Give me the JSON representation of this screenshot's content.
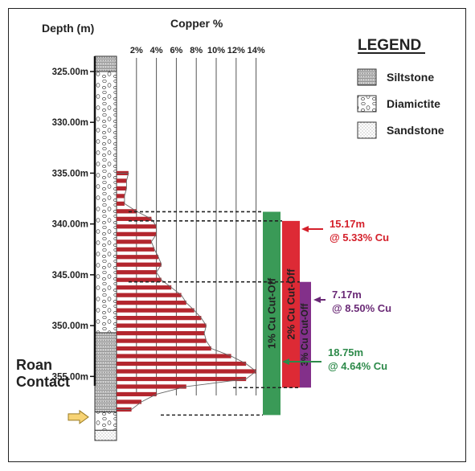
{
  "chart_data": {
    "type": "bar",
    "title": "Copper %",
    "ylabel": "Depth (m)",
    "depth_ticks": [
      "325.00m",
      "330.00m",
      "335.00m",
      "340.00m",
      "345.00m",
      "350.00m",
      "355.00m"
    ],
    "depth_tick_values": [
      325,
      330,
      335,
      340,
      345,
      350,
      355
    ],
    "x_ticks": [
      "2%",
      "4%",
      "6%",
      "8%",
      "10%",
      "12%",
      "14%"
    ],
    "x_tick_values": [
      2,
      4,
      6,
      8,
      10,
      12,
      14
    ],
    "ylim": [
      323.5,
      361.3
    ],
    "xlim": [
      0,
      15
    ],
    "depths": [
      335.0,
      335.75,
      336.5,
      337.25,
      338.0,
      338.75,
      339.5,
      340.25,
      341.0,
      341.75,
      342.5,
      343.25,
      344.0,
      344.75,
      345.5,
      346.25,
      347.0,
      347.75,
      348.5,
      349.25,
      350.0,
      350.75,
      351.5,
      352.25,
      353.0,
      353.75,
      354.5,
      355.25,
      356.0,
      356.75,
      357.5,
      358.25
    ],
    "values": [
      1.2,
      1.0,
      1.0,
      0.8,
      0.8,
      2.0,
      3.5,
      4.0,
      4.0,
      3.5,
      3.8,
      4.2,
      4.5,
      4.0,
      4.5,
      5.5,
      6.5,
      7.0,
      7.8,
      8.5,
      9.0,
      8.8,
      9.0,
      9.5,
      11.5,
      13.0,
      14.0,
      13.0,
      7.0,
      4.0,
      2.5,
      1.5
    ],
    "color": "#b3262e",
    "intercepts": [
      {
        "label": "1% Cu Cut-Off",
        "from": 338.8,
        "to": 358.8,
        "color": "#3a9a57",
        "summary_length": "18.75m",
        "summary_grade": "@ 4.64% Cu"
      },
      {
        "label": "2% Cu Cut-Off",
        "from": 339.7,
        "to": 356.1,
        "color": "#dd2a35",
        "summary_length": "15.17m",
        "summary_grade": "@ 5.33% Cu"
      },
      {
        "label": "3% Cu Cut-Off",
        "from": 345.7,
        "to": 356.1,
        "color": "#83308a",
        "summary_length": "7.17m",
        "summary_grade": "@ 8.50% Cu"
      }
    ],
    "lithology": [
      {
        "name": "Siltstone",
        "from": 323.5,
        "to": 325.0
      },
      {
        "name": "Diamictite",
        "from": 325.0,
        "to": 350.7
      },
      {
        "name": "Siltstone",
        "from": 350.7,
        "to": 358.5
      },
      {
        "name": "Diamictite",
        "from": 358.5,
        "to": 360.3
      },
      {
        "name": "Sandstone",
        "from": 360.3,
        "to": 384.0
      }
    ]
  },
  "legend": {
    "title": "LEGEND",
    "items": [
      {
        "key": "siltstone",
        "label": "Siltstone"
      },
      {
        "key": "diamictite",
        "label": "Diamictite"
      },
      {
        "key": "sandstone",
        "label": "Sandstone"
      }
    ]
  },
  "contact_label_line1": "Roan",
  "contact_label_line2": "Contact",
  "contact_depth": 359.0,
  "colors": {
    "bar": "#b3262e",
    "arrow_fill": "#f7d374",
    "arrow_stroke": "#9a7b23"
  }
}
